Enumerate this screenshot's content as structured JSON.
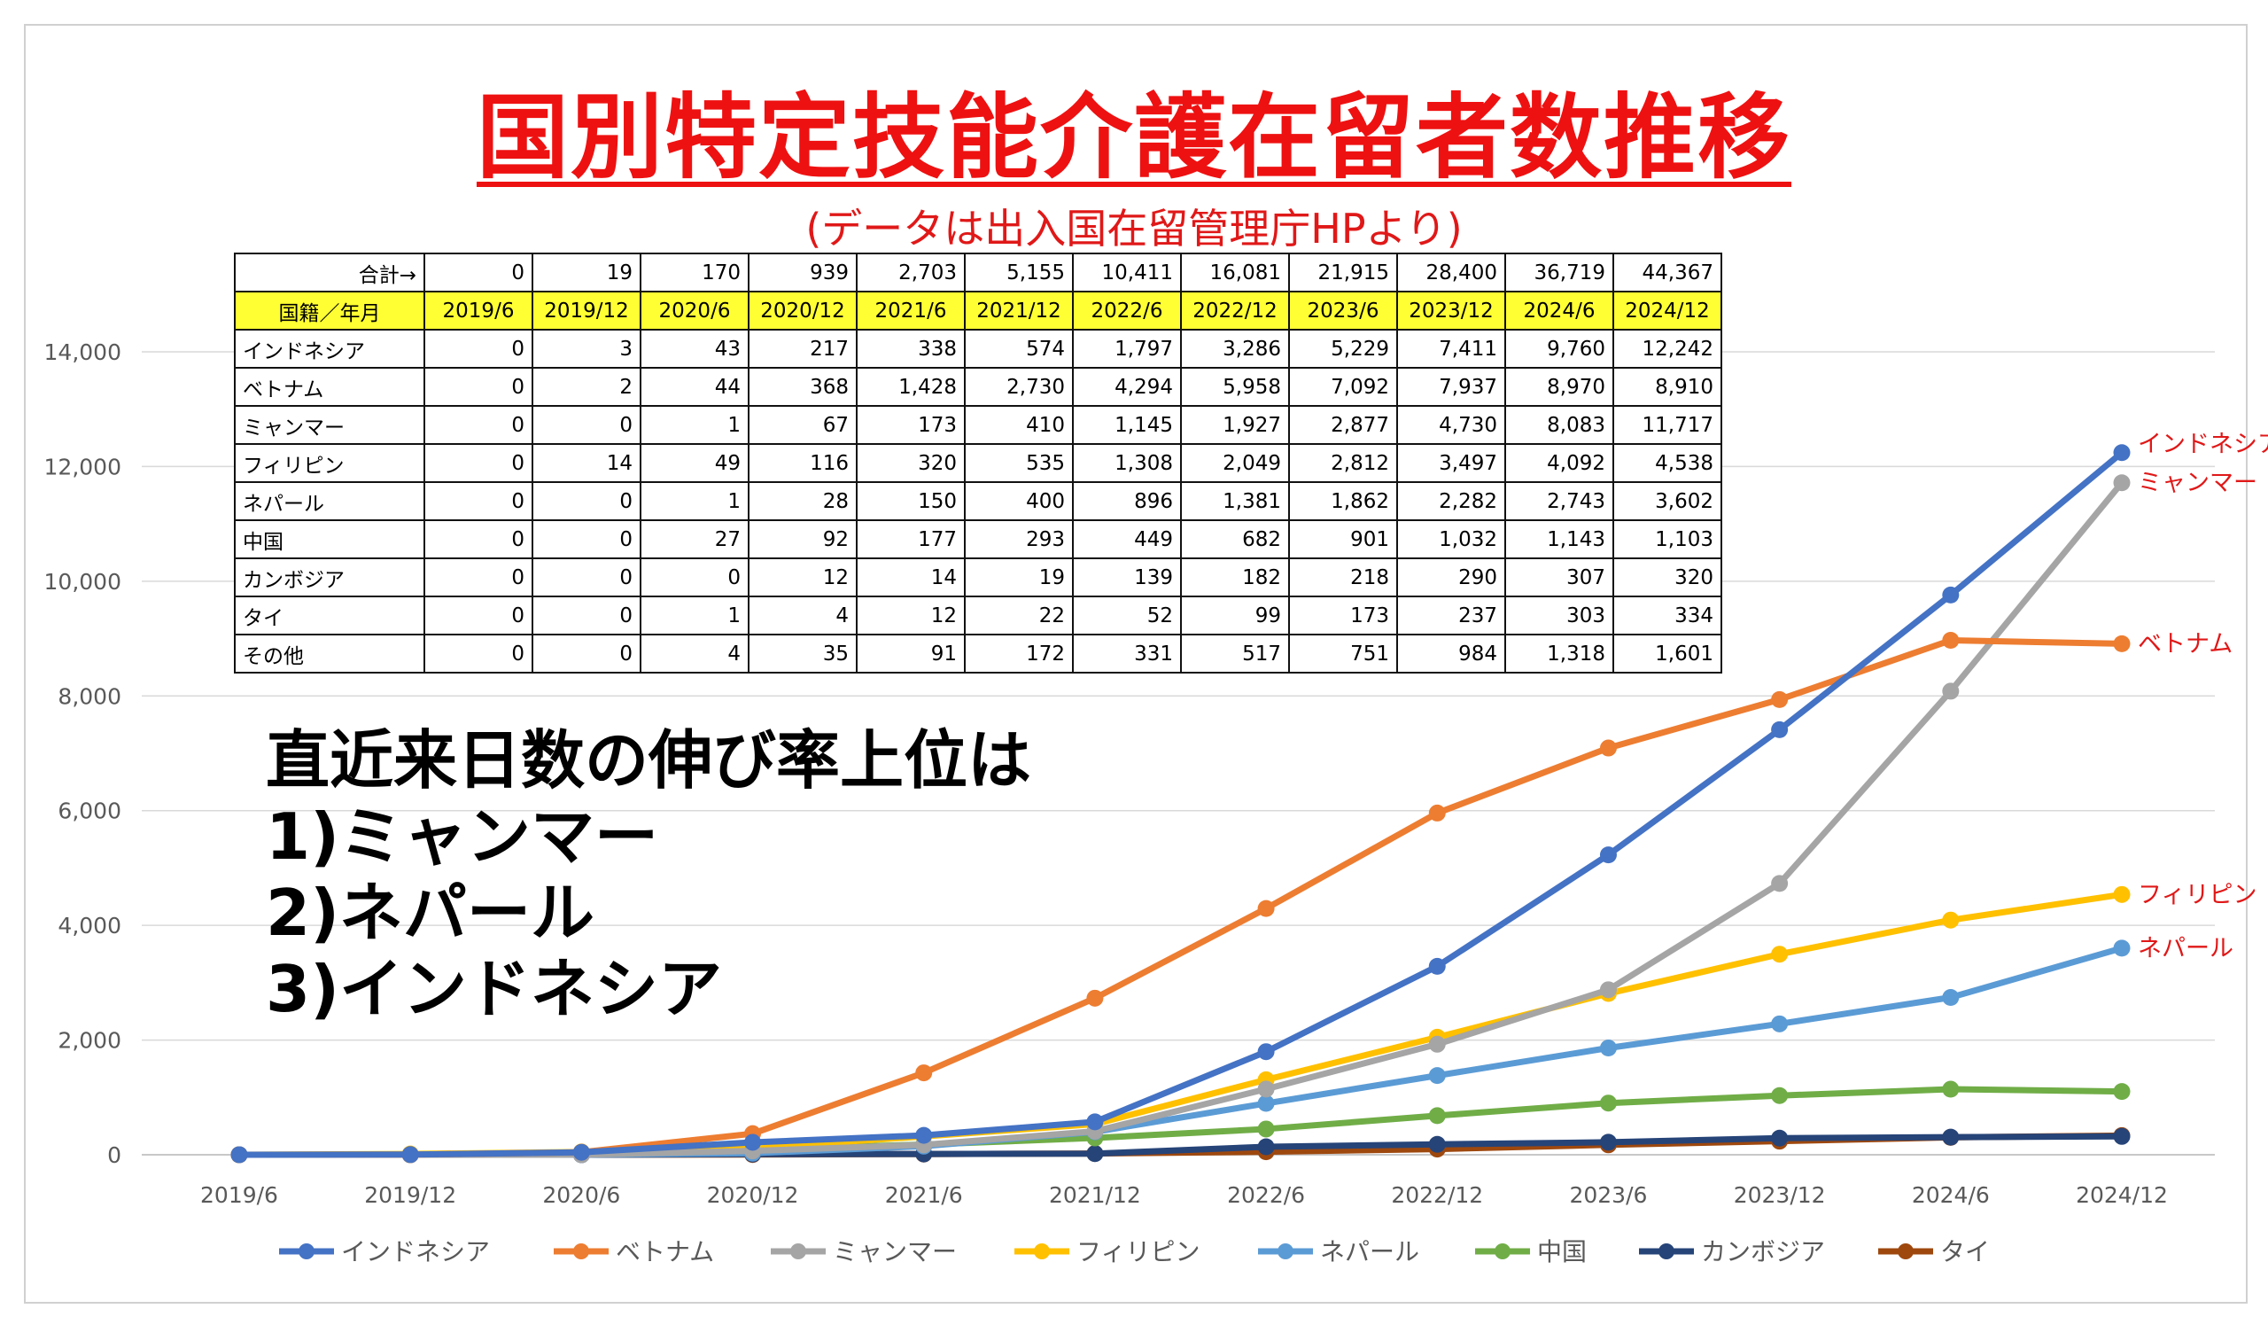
{
  "title": "国別特定技能介護在留者数推移",
  "subtitle": "(データは出入国在留管理庁HPより)",
  "note": {
    "heading": "直近来日数の伸び率上位は",
    "lines": [
      "1)ミャンマー",
      "2)ネパール",
      "3)インドネシア"
    ]
  },
  "table": {
    "total_label": "合計→",
    "totals": [
      "0",
      "19",
      "170",
      "939",
      "2,703",
      "5,155",
      "10,411",
      "16,081",
      "21,915",
      "28,400",
      "36,719",
      "44,367"
    ],
    "header_label": "国籍／年月",
    "periods": [
      "2019/6",
      "2019/12",
      "2020/6",
      "2020/12",
      "2021/6",
      "2021/12",
      "2022/6",
      "2022/12",
      "2023/6",
      "2023/12",
      "2024/6",
      "2024/12"
    ],
    "rows": [
      {
        "name": "インドネシア",
        "values": [
          "0",
          "3",
          "43",
          "217",
          "338",
          "574",
          "1,797",
          "3,286",
          "5,229",
          "7,411",
          "9,760",
          "12,242"
        ]
      },
      {
        "name": "ベトナム",
        "values": [
          "0",
          "2",
          "44",
          "368",
          "1,428",
          "2,730",
          "4,294",
          "5,958",
          "7,092",
          "7,937",
          "8,970",
          "8,910"
        ]
      },
      {
        "name": "ミャンマー",
        "values": [
          "0",
          "0",
          "1",
          "67",
          "173",
          "410",
          "1,145",
          "1,927",
          "2,877",
          "4,730",
          "8,083",
          "11,717"
        ]
      },
      {
        "name": "フィリピン",
        "values": [
          "0",
          "14",
          "49",
          "116",
          "320",
          "535",
          "1,308",
          "2,049",
          "2,812",
          "3,497",
          "4,092",
          "4,538"
        ]
      },
      {
        "name": "ネパール",
        "values": [
          "0",
          "0",
          "1",
          "28",
          "150",
          "400",
          "896",
          "1,381",
          "1,862",
          "2,282",
          "2,743",
          "3,602"
        ]
      },
      {
        "name": "中国",
        "values": [
          "0",
          "0",
          "27",
          "92",
          "177",
          "293",
          "449",
          "682",
          "901",
          "1,032",
          "1,143",
          "1,103"
        ]
      },
      {
        "name": "カンボジア",
        "values": [
          "0",
          "0",
          "0",
          "12",
          "14",
          "19",
          "139",
          "182",
          "218",
          "290",
          "307",
          "320"
        ]
      },
      {
        "name": "タイ",
        "values": [
          "0",
          "0",
          "1",
          "4",
          "12",
          "22",
          "52",
          "99",
          "173",
          "237",
          "303",
          "334"
        ]
      },
      {
        "name": "その他",
        "values": [
          "0",
          "0",
          "4",
          "35",
          "91",
          "172",
          "331",
          "517",
          "751",
          "984",
          "1,318",
          "1,601"
        ]
      }
    ]
  },
  "chart_data": {
    "type": "line",
    "title": "国別特定技能介護在留者数推移",
    "x": [
      "2019/6",
      "2019/12",
      "2020/6",
      "2020/12",
      "2021/6",
      "2021/12",
      "2022/6",
      "2022/12",
      "2023/6",
      "2023/12",
      "2024/6",
      "2024/12"
    ],
    "ylim": [
      0,
      14000
    ],
    "yticks": [
      0,
      2000,
      4000,
      6000,
      8000,
      10000,
      12000,
      14000
    ],
    "ytick_labels": [
      "0",
      "2,000",
      "4,000",
      "6,000",
      "8,000",
      "10,000",
      "12,000",
      "14,000"
    ],
    "grid": true,
    "legend_position": "bottom",
    "series": [
      {
        "name": "インドネシア",
        "color": "#4472c4",
        "end_label": "インドネシア",
        "values": [
          0,
          3,
          43,
          217,
          338,
          574,
          1797,
          3286,
          5229,
          7411,
          9760,
          12242
        ]
      },
      {
        "name": "ベトナム",
        "color": "#ed7d31",
        "end_label": "ベトナム",
        "values": [
          0,
          2,
          44,
          368,
          1428,
          2730,
          4294,
          5958,
          7092,
          7937,
          8970,
          8910
        ]
      },
      {
        "name": "ミャンマー",
        "color": "#a5a5a5",
        "end_label": "ミャンマー",
        "values": [
          0,
          0,
          1,
          67,
          173,
          410,
          1145,
          1927,
          2877,
          4730,
          8083,
          11717
        ]
      },
      {
        "name": "フィリピン",
        "color": "#ffc000",
        "end_label": "フィリピン",
        "values": [
          0,
          14,
          49,
          116,
          320,
          535,
          1308,
          2049,
          2812,
          3497,
          4092,
          4538
        ]
      },
      {
        "name": "ネパール",
        "color": "#5b9bd5",
        "end_label": "ネパール",
        "values": [
          0,
          0,
          1,
          28,
          150,
          400,
          896,
          1381,
          1862,
          2282,
          2743,
          3602
        ]
      },
      {
        "name": "中国",
        "color": "#70ad47",
        "end_label": "",
        "values": [
          0,
          0,
          27,
          92,
          177,
          293,
          449,
          682,
          901,
          1032,
          1143,
          1103
        ]
      },
      {
        "name": "カンボジア",
        "color": "#264478",
        "end_label": "",
        "values": [
          0,
          0,
          0,
          12,
          14,
          19,
          139,
          182,
          218,
          290,
          307,
          320
        ]
      },
      {
        "name": "タイ",
        "color": "#9e480e",
        "end_label": "",
        "values": [
          0,
          0,
          1,
          4,
          12,
          22,
          52,
          99,
          173,
          237,
          303,
          334
        ]
      }
    ],
    "end_label_color": "#e01818"
  }
}
